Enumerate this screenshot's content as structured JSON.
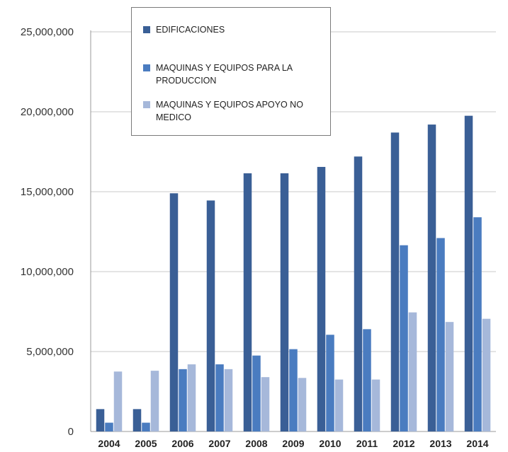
{
  "chart_data": {
    "type": "bar",
    "categories": [
      "2004",
      "2005",
      "2006",
      "2007",
      "2008",
      "2009",
      "2010",
      "2011",
      "2012",
      "2013",
      "2014"
    ],
    "series": [
      {
        "name": "EDIFICACIONES",
        "color": "#3a5f96",
        "values": [
          1400000,
          1400000,
          14900000,
          14450000,
          16150000,
          16150000,
          16550000,
          17200000,
          18700000,
          19200000,
          19750000
        ]
      },
      {
        "name": "MAQUINAS Y EQUIPOS PARA LA PRODUCCION",
        "color": "#4a7cc0",
        "values": [
          550000,
          550000,
          3900000,
          4200000,
          4750000,
          5150000,
          6050000,
          6400000,
          11650000,
          12100000,
          13400000
        ]
      },
      {
        "name": "MAQUINAS Y EQUIPOS APOYO NO MEDICO",
        "color": "#a6b8da",
        "values": [
          3750000,
          3800000,
          4200000,
          3900000,
          3400000,
          3350000,
          3250000,
          3250000,
          7450000,
          6850000,
          7050000
        ]
      }
    ],
    "ylim": [
      0,
      25000000
    ],
    "yticks": [
      0,
      5000000,
      10000000,
      15000000,
      20000000,
      25000000
    ],
    "ytick_labels": [
      "0",
      "5,000,000",
      "10,000,000",
      "15,000,000",
      "20,000,000",
      "25,000,000"
    ],
    "grid": true,
    "legend_position": "top-left"
  }
}
